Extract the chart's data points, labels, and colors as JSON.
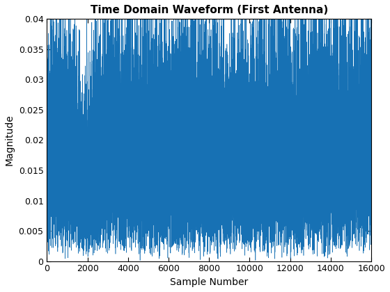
{
  "title": "Time Domain Waveform (First Antenna)",
  "xlabel": "Sample Number",
  "ylabel": "Magnitude",
  "xlim": [
    0,
    16000
  ],
  "ylim": [
    0,
    0.04
  ],
  "yticks": [
    0,
    0.005,
    0.01,
    0.015,
    0.02,
    0.025,
    0.03,
    0.035,
    0.04
  ],
  "xticks": [
    0,
    2000,
    4000,
    6000,
    8000,
    10000,
    12000,
    14000,
    16000
  ],
  "n_samples": 16000,
  "line_color": "#1771b4",
  "linewidth": 0.4,
  "seed": 42,
  "noise_std": 0.01,
  "background_color": "#ffffff",
  "title_fontsize": 11,
  "label_fontsize": 10,
  "figsize": [
    5.6,
    4.2
  ],
  "dpi": 100
}
